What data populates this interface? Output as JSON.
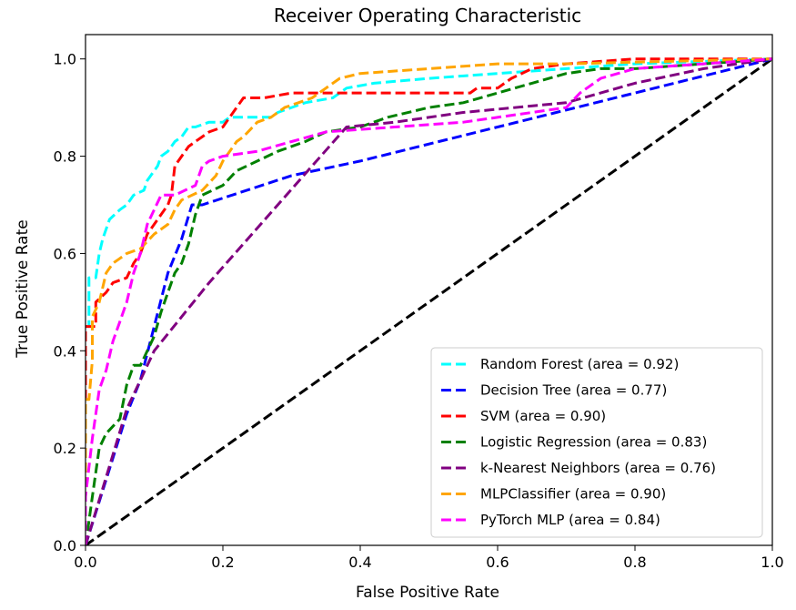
{
  "chart_data": {
    "type": "line",
    "title": "Receiver Operating Characteristic",
    "xlabel": "False Positive Rate",
    "ylabel": "True Positive Rate",
    "xlim": [
      0.0,
      1.0
    ],
    "ylim": [
      0.0,
      1.05
    ],
    "x_ticks": [
      0.0,
      0.2,
      0.4,
      0.6,
      0.8,
      1.0
    ],
    "y_ticks": [
      0.0,
      0.2,
      0.4,
      0.6,
      0.8,
      1.0
    ],
    "x_tick_labels": [
      "0.0",
      "0.2",
      "0.4",
      "0.6",
      "0.8",
      "1.0"
    ],
    "y_tick_labels": [
      "0.0",
      "0.2",
      "0.4",
      "0.6",
      "0.8",
      "1.0"
    ],
    "grid": false,
    "legend_position": "lower-right",
    "diagonal": {
      "color": "#000000",
      "points": [
        [
          0,
          0
        ],
        [
          1,
          1
        ]
      ]
    },
    "series": [
      {
        "name": "Random Forest (area = 0.92)",
        "color": "#00ffff",
        "points": [
          [
            0,
            0
          ],
          [
            0,
            0.45
          ],
          [
            0.005,
            0.45
          ],
          [
            0.005,
            0.55
          ],
          [
            0.015,
            0.55
          ],
          [
            0.02,
            0.6
          ],
          [
            0.025,
            0.63
          ],
          [
            0.035,
            0.67
          ],
          [
            0.05,
            0.69
          ],
          [
            0.06,
            0.7
          ],
          [
            0.07,
            0.72
          ],
          [
            0.085,
            0.73
          ],
          [
            0.09,
            0.75
          ],
          [
            0.1,
            0.77
          ],
          [
            0.105,
            0.78
          ],
          [
            0.11,
            0.8
          ],
          [
            0.12,
            0.81
          ],
          [
            0.13,
            0.83
          ],
          [
            0.14,
            0.84
          ],
          [
            0.15,
            0.86
          ],
          [
            0.16,
            0.86
          ],
          [
            0.18,
            0.87
          ],
          [
            0.2,
            0.87
          ],
          [
            0.21,
            0.88
          ],
          [
            0.25,
            0.88
          ],
          [
            0.27,
            0.88
          ],
          [
            0.28,
            0.89
          ],
          [
            0.3,
            0.9
          ],
          [
            0.32,
            0.91
          ],
          [
            0.36,
            0.92
          ],
          [
            0.38,
            0.94
          ],
          [
            0.42,
            0.95
          ],
          [
            0.5,
            0.96
          ],
          [
            0.6,
            0.97
          ],
          [
            0.7,
            0.98
          ],
          [
            0.8,
            0.99
          ],
          [
            1.0,
            1.0
          ]
        ]
      },
      {
        "name": "Decision Tree (area = 0.77)",
        "color": "#0000ff",
        "points": [
          [
            0,
            0
          ],
          [
            0.06,
            0.27
          ],
          [
            0.08,
            0.34
          ],
          [
            0.1,
            0.45
          ],
          [
            0.12,
            0.56
          ],
          [
            0.14,
            0.63
          ],
          [
            0.155,
            0.7
          ],
          [
            0.17,
            0.7
          ],
          [
            0.3,
            0.76
          ],
          [
            0.4,
            0.79
          ],
          [
            1.0,
            1.0
          ]
        ]
      },
      {
        "name": "SVM (area = 0.90)",
        "color": "#ff0000",
        "points": [
          [
            0,
            0
          ],
          [
            0,
            0.45
          ],
          [
            0.015,
            0.45
          ],
          [
            0.015,
            0.5
          ],
          [
            0.03,
            0.52
          ],
          [
            0.04,
            0.54
          ],
          [
            0.06,
            0.55
          ],
          [
            0.07,
            0.58
          ],
          [
            0.08,
            0.6
          ],
          [
            0.09,
            0.64
          ],
          [
            0.1,
            0.66
          ],
          [
            0.12,
            0.7
          ],
          [
            0.125,
            0.72
          ],
          [
            0.13,
            0.78
          ],
          [
            0.14,
            0.8
          ],
          [
            0.15,
            0.82
          ],
          [
            0.16,
            0.83
          ],
          [
            0.18,
            0.85
          ],
          [
            0.2,
            0.86
          ],
          [
            0.21,
            0.88
          ],
          [
            0.22,
            0.9
          ],
          [
            0.23,
            0.92
          ],
          [
            0.26,
            0.92
          ],
          [
            0.3,
            0.93
          ],
          [
            0.56,
            0.93
          ],
          [
            0.57,
            0.94
          ],
          [
            0.6,
            0.94
          ],
          [
            0.62,
            0.96
          ],
          [
            0.65,
            0.98
          ],
          [
            0.7,
            0.99
          ],
          [
            0.8,
            1.0
          ],
          [
            1.0,
            1.0
          ]
        ]
      },
      {
        "name": "Logistic Regression (area = 0.83)",
        "color": "#008000",
        "points": [
          [
            0,
            0
          ],
          [
            0.005,
            0.05
          ],
          [
            0.01,
            0.1
          ],
          [
            0.02,
            0.2
          ],
          [
            0.03,
            0.23
          ],
          [
            0.05,
            0.26
          ],
          [
            0.06,
            0.33
          ],
          [
            0.07,
            0.37
          ],
          [
            0.08,
            0.37
          ],
          [
            0.1,
            0.43
          ],
          [
            0.11,
            0.48
          ],
          [
            0.12,
            0.52
          ],
          [
            0.13,
            0.56
          ],
          [
            0.14,
            0.58
          ],
          [
            0.15,
            0.62
          ],
          [
            0.16,
            0.68
          ],
          [
            0.17,
            0.72
          ],
          [
            0.2,
            0.74
          ],
          [
            0.22,
            0.77
          ],
          [
            0.25,
            0.79
          ],
          [
            0.28,
            0.81
          ],
          [
            0.32,
            0.83
          ],
          [
            0.35,
            0.85
          ],
          [
            0.4,
            0.86
          ],
          [
            0.44,
            0.88
          ],
          [
            0.5,
            0.9
          ],
          [
            0.55,
            0.91
          ],
          [
            0.6,
            0.93
          ],
          [
            0.65,
            0.95
          ],
          [
            0.7,
            0.97
          ],
          [
            0.75,
            0.98
          ],
          [
            0.8,
            0.98
          ],
          [
            0.9,
            0.99
          ],
          [
            1.0,
            1.0
          ]
        ]
      },
      {
        "name": "k-Nearest Neighbors (area = 0.76)",
        "color": "#800080",
        "points": [
          [
            0,
            0
          ],
          [
            0.06,
            0.28
          ],
          [
            0.1,
            0.4
          ],
          [
            0.18,
            0.54
          ],
          [
            0.38,
            0.86
          ],
          [
            0.45,
            0.87
          ],
          [
            0.55,
            0.89
          ],
          [
            0.7,
            0.91
          ],
          [
            0.8,
            0.95
          ],
          [
            0.9,
            0.98
          ],
          [
            1.0,
            1.0
          ]
        ]
      },
      {
        "name": "MLPClassifier (area = 0.90)",
        "color": "#ffa500",
        "points": [
          [
            0,
            0
          ],
          [
            0,
            0.3
          ],
          [
            0.005,
            0.3
          ],
          [
            0.01,
            0.38
          ],
          [
            0.01,
            0.47
          ],
          [
            0.02,
            0.5
          ],
          [
            0.025,
            0.53
          ],
          [
            0.03,
            0.56
          ],
          [
            0.04,
            0.58
          ],
          [
            0.05,
            0.59
          ],
          [
            0.06,
            0.6
          ],
          [
            0.08,
            0.61
          ],
          [
            0.1,
            0.64
          ],
          [
            0.12,
            0.66
          ],
          [
            0.13,
            0.69
          ],
          [
            0.14,
            0.71
          ],
          [
            0.17,
            0.73
          ],
          [
            0.19,
            0.76
          ],
          [
            0.2,
            0.79
          ],
          [
            0.22,
            0.83
          ],
          [
            0.23,
            0.84
          ],
          [
            0.25,
            0.87
          ],
          [
            0.27,
            0.88
          ],
          [
            0.29,
            0.9
          ],
          [
            0.31,
            0.91
          ],
          [
            0.33,
            0.92
          ],
          [
            0.35,
            0.94
          ],
          [
            0.37,
            0.96
          ],
          [
            0.4,
            0.97
          ],
          [
            0.5,
            0.98
          ],
          [
            0.6,
            0.99
          ],
          [
            0.7,
            0.99
          ],
          [
            1.0,
            1.0
          ]
        ]
      },
      {
        "name": "PyTorch MLP (area = 0.84)",
        "color": "#ff00ff",
        "points": [
          [
            0,
            0
          ],
          [
            0,
            0.1
          ],
          [
            0.01,
            0.22
          ],
          [
            0.02,
            0.32
          ],
          [
            0.03,
            0.36
          ],
          [
            0.04,
            0.42
          ],
          [
            0.05,
            0.46
          ],
          [
            0.06,
            0.5
          ],
          [
            0.07,
            0.56
          ],
          [
            0.08,
            0.6
          ],
          [
            0.09,
            0.66
          ],
          [
            0.11,
            0.72
          ],
          [
            0.13,
            0.72
          ],
          [
            0.16,
            0.74
          ],
          [
            0.17,
            0.78
          ],
          [
            0.18,
            0.79
          ],
          [
            0.2,
            0.8
          ],
          [
            0.25,
            0.81
          ],
          [
            0.3,
            0.83
          ],
          [
            0.35,
            0.85
          ],
          [
            0.45,
            0.86
          ],
          [
            0.55,
            0.87
          ],
          [
            0.65,
            0.89
          ],
          [
            0.7,
            0.9
          ],
          [
            0.72,
            0.93
          ],
          [
            0.75,
            0.96
          ],
          [
            0.8,
            0.98
          ],
          [
            0.9,
            0.99
          ],
          [
            1.0,
            1.0
          ]
        ]
      }
    ]
  }
}
